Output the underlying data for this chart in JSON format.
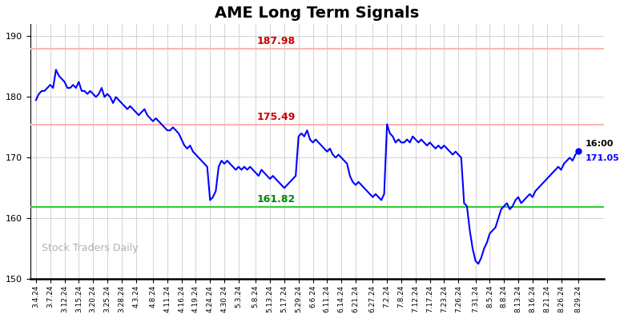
{
  "title": "AME Long Term Signals",
  "title_fontsize": 14,
  "title_fontweight": "bold",
  "line_color": "blue",
  "line_width": 1.5,
  "background_color": "#ffffff",
  "grid_color": "#cccccc",
  "upper_resistance": 187.98,
  "upper_resistance_color": "#ffb3b3",
  "lower_resistance": 175.49,
  "lower_resistance_color": "#ffb3b3",
  "support": 161.82,
  "support_color": "#33cc33",
  "label_upper": "187.98",
  "label_lower": "175.49",
  "label_support": "161.82",
  "label_color_resistance": "#cc0000",
  "label_color_support": "#008800",
  "last_price": 171.05,
  "last_time": "16:00",
  "watermark": "Stock Traders Daily",
  "watermark_color": "#b0b0b0",
  "ylim": [
    150,
    192
  ],
  "yticks": [
    150,
    160,
    170,
    180,
    190
  ],
  "x_labels": [
    "3.4.24",
    "3.7.24",
    "3.12.24",
    "3.15.24",
    "3.20.24",
    "3.25.24",
    "3.28.24",
    "4.3.24",
    "4.8.24",
    "4.11.24",
    "4.16.24",
    "4.19.24",
    "4.24.24",
    "4.30.24",
    "5.3.24",
    "5.8.24",
    "5.13.24",
    "5.17.24",
    "5.29.24",
    "6.6.24",
    "6.11.24",
    "6.14.24",
    "6.21.24",
    "6.27.24",
    "7.2.24",
    "7.8.24",
    "7.12.24",
    "7.17.24",
    "7.23.24",
    "7.26.24",
    "7.31.24",
    "8.5.24",
    "8.8.24",
    "8.13.24",
    "8.16.24",
    "8.21.24",
    "8.26.24",
    "8.29.24"
  ],
  "prices": [
    179.5,
    180.5,
    181.0,
    181.0,
    181.5,
    182.0,
    181.5,
    184.5,
    183.5,
    183.0,
    182.5,
    181.5,
    181.5,
    182.0,
    181.5,
    182.5,
    181.0,
    181.0,
    180.5,
    181.0,
    180.5,
    180.0,
    180.5,
    181.5,
    180.0,
    180.5,
    180.0,
    179.0,
    180.0,
    179.5,
    179.0,
    178.5,
    178.0,
    178.5,
    178.0,
    177.5,
    177.0,
    177.5,
    178.0,
    177.0,
    176.5,
    176.0,
    176.5,
    176.0,
    175.5,
    175.0,
    174.5,
    174.5,
    175.0,
    174.5,
    174.0,
    173.0,
    172.0,
    171.5,
    172.0,
    171.0,
    170.5,
    170.0,
    169.5,
    169.0,
    168.5,
    163.0,
    163.5,
    164.5,
    168.5,
    169.5,
    169.0,
    169.5,
    169.0,
    168.5,
    168.0,
    168.5,
    168.0,
    168.5,
    168.0,
    168.5,
    168.0,
    167.5,
    167.0,
    168.0,
    167.5,
    167.0,
    166.5,
    167.0,
    166.5,
    166.0,
    165.5,
    165.0,
    165.5,
    166.0,
    166.5,
    167.0,
    173.5,
    174.0,
    173.5,
    174.5,
    173.0,
    172.5,
    173.0,
    172.5,
    172.0,
    171.5,
    171.0,
    171.5,
    170.5,
    170.0,
    170.5,
    170.0,
    169.5,
    169.0,
    167.0,
    166.0,
    165.5,
    166.0,
    165.5,
    165.0,
    164.5,
    164.0,
    163.5,
    164.0,
    163.5,
    163.0,
    164.0,
    175.5,
    174.0,
    173.5,
    172.5,
    173.0,
    172.5,
    172.5,
    173.0,
    172.5,
    173.5,
    173.0,
    172.5,
    173.0,
    172.5,
    172.0,
    172.5,
    172.0,
    171.5,
    172.0,
    171.5,
    172.0,
    171.5,
    171.0,
    170.5,
    171.0,
    170.5,
    170.0,
    162.5,
    162.0,
    158.0,
    155.0,
    153.0,
    152.5,
    153.5,
    155.0,
    156.0,
    157.5,
    158.0,
    158.5,
    160.0,
    161.5,
    162.0,
    162.5,
    161.5,
    162.0,
    163.0,
    163.5,
    162.5,
    163.0,
    163.5,
    164.0,
    163.5,
    164.5,
    165.0,
    165.5,
    166.0,
    166.5,
    167.0,
    167.5,
    168.0,
    168.5,
    168.0,
    169.0,
    169.5,
    170.0,
    169.5,
    170.5,
    171.05
  ]
}
